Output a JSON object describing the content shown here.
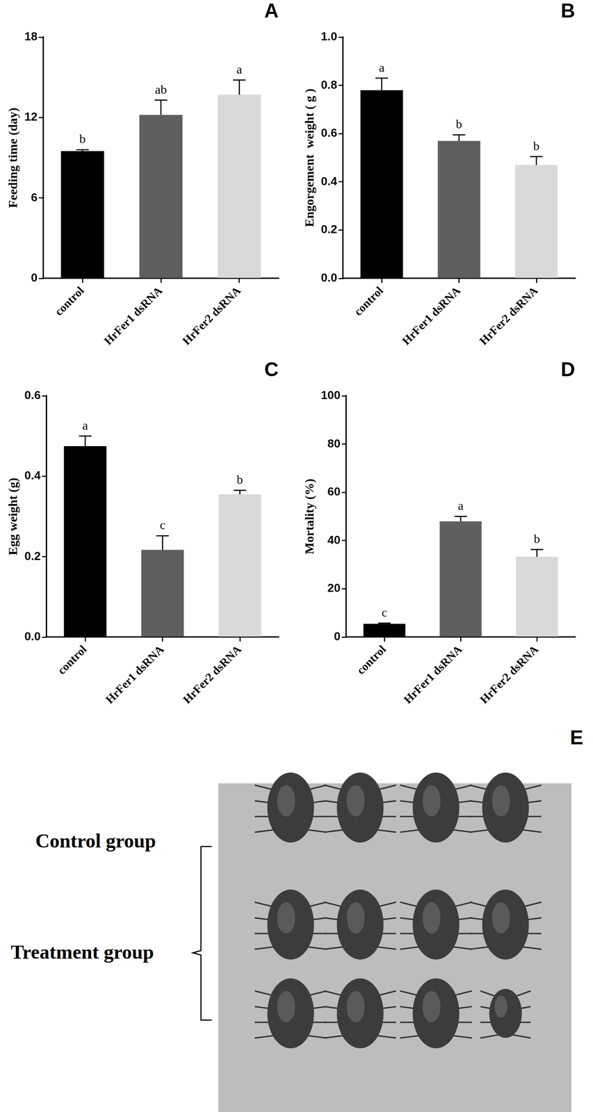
{
  "chart_data": [
    {
      "type": "bar",
      "title": "A",
      "y_label": "Feeding time (day)",
      "categories": [
        "control",
        "HrFer1 dsRNA",
        "HrFer2 dsRNA"
      ],
      "values": [
        9.5,
        12.2,
        13.7
      ],
      "errors": [
        0.1,
        1.1,
        1.1
      ],
      "letters": [
        "b",
        "ab",
        "a"
      ],
      "colors": [
        "#000000",
        "#5f5f5f",
        "#d9d9d9"
      ],
      "ylim": [
        0,
        18
      ],
      "yticks": [
        0,
        6,
        12,
        18
      ],
      "grid": false
    },
    {
      "type": "bar",
      "title": "B",
      "y_label": "Engorgement  weight ( g )",
      "categories": [
        "control",
        "HrFer1 dsRNA",
        "HrFer2 dsRNA"
      ],
      "values": [
        0.78,
        0.57,
        0.47
      ],
      "errors": [
        0.05,
        0.025,
        0.035
      ],
      "letters": [
        "a",
        "b",
        "b"
      ],
      "colors": [
        "#000000",
        "#5f5f5f",
        "#d9d9d9"
      ],
      "ylim": [
        0,
        1.0
      ],
      "yticks": [
        {
          "value": 0,
          "label": "0.0"
        },
        0.2,
        0.4,
        0.6,
        0.8,
        {
          "value": 1.0,
          "label": "1.0"
        }
      ],
      "grid": false
    },
    {
      "type": "bar",
      "title": "C",
      "y_label": "Egg weight (g)",
      "categories": [
        "control",
        "HrFer1 dsRNA",
        "HrFer2 dsRNA"
      ],
      "values": [
        0.475,
        0.217,
        0.355
      ],
      "errors": [
        0.025,
        0.035,
        0.01
      ],
      "letters": [
        "a",
        "c",
        "b"
      ],
      "colors": [
        "#000000",
        "#5f5f5f",
        "#d9d9d9"
      ],
      "ylim": [
        0,
        0.6
      ],
      "yticks": [
        {
          "value": 0,
          "label": "0.0"
        },
        0.2,
        0.4,
        0.6
      ],
      "grid": false
    },
    {
      "type": "bar",
      "title": "D",
      "y_label": "Mortality (%)",
      "categories": [
        "control",
        "HrFer1 dsRNA",
        "HrFer2 dsRNA"
      ],
      "values": [
        5.5,
        48,
        33.3
      ],
      "errors": [
        0.3,
        2,
        3
      ],
      "letters": [
        "c",
        "a",
        "b"
      ],
      "colors": [
        "#000000",
        "#5f5f5f",
        "#d9d9d9"
      ],
      "ylim": [
        0,
        100
      ],
      "yticks": [
        0,
        20,
        40,
        60,
        80,
        100
      ],
      "grid": false
    }
  ],
  "panel_e": {
    "title": "E",
    "labels": [
      "Control group",
      "Treatment group"
    ]
  }
}
